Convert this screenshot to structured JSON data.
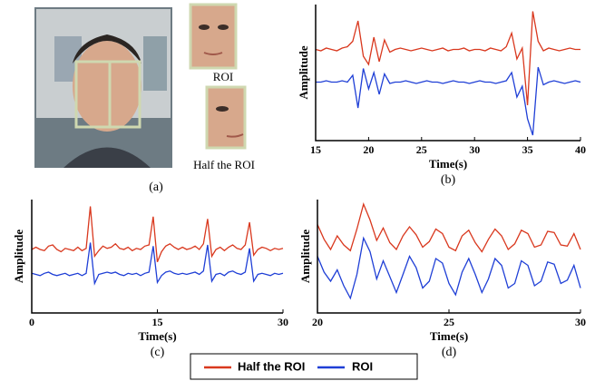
{
  "panel_a": {
    "roi_label": "ROI",
    "half_label": "Half the ROI",
    "caption": "(a)"
  },
  "chart_data": [
    {
      "type": "line",
      "caption": "(b)",
      "xlabel": "Time(s)",
      "ylabel": "Amplitude",
      "xlim": [
        15,
        40
      ],
      "xticks": [
        15,
        20,
        25,
        30,
        35,
        40
      ],
      "ylim": [
        0,
        10
      ],
      "x": [
        15,
        15.5,
        16,
        16.5,
        17,
        17.5,
        18,
        18.5,
        19,
        19.5,
        20,
        20.5,
        21,
        21.5,
        22,
        22.5,
        23,
        23.5,
        24,
        24.5,
        25,
        25.5,
        26,
        26.5,
        27,
        27.5,
        28,
        28.5,
        29,
        29.5,
        30,
        30.5,
        31,
        31.5,
        32,
        32.5,
        33,
        33.5,
        34,
        34.5,
        35,
        35.5,
        36,
        36.5,
        37,
        37.5,
        38,
        38.5,
        39,
        39.5,
        40
      ],
      "series": [
        {
          "name": "Half the ROI",
          "color": "#d9381e",
          "values": [
            6.7,
            6.6,
            6.8,
            6.7,
            6.6,
            6.8,
            6.9,
            7.3,
            8.8,
            6.2,
            5.6,
            7.6,
            5.8,
            7.4,
            6.5,
            6.7,
            6.8,
            6.7,
            6.6,
            6.7,
            6.8,
            6.7,
            6.6,
            6.7,
            6.8,
            6.6,
            6.7,
            6.7,
            6.8,
            6.6,
            6.7,
            6.7,
            6.6,
            6.8,
            6.7,
            6.6,
            6.9,
            7.9,
            6.0,
            6.8,
            2.6,
            9.5,
            7.3,
            6.6,
            6.8,
            6.7,
            6.6,
            6.7,
            6.8,
            6.7,
            6.7
          ]
        },
        {
          "name": "ROI",
          "color": "#1f3fd6",
          "values": [
            4.3,
            4.3,
            4.4,
            4.3,
            4.3,
            4.4,
            4.3,
            4.8,
            2.4,
            5.3,
            3.8,
            5.0,
            3.4,
            4.9,
            4.2,
            4.3,
            4.3,
            4.4,
            4.3,
            4.2,
            4.3,
            4.4,
            4.3,
            4.3,
            4.2,
            4.3,
            4.4,
            4.3,
            4.3,
            4.2,
            4.3,
            4.4,
            4.3,
            4.3,
            4.2,
            4.3,
            4.4,
            5.0,
            3.2,
            4.0,
            1.6,
            0.4,
            5.4,
            4.1,
            4.3,
            4.4,
            4.3,
            4.2,
            4.3,
            4.4,
            4.3
          ]
        }
      ]
    },
    {
      "type": "line",
      "caption": "(c)",
      "xlabel": "Time(s)",
      "ylabel": "Amplitude",
      "xlim": [
        0,
        30
      ],
      "xticks": [
        0,
        15,
        30
      ],
      "ylim": [
        0,
        10
      ],
      "x": [
        0,
        0.5,
        1,
        1.5,
        2,
        2.5,
        3,
        3.5,
        4,
        4.5,
        5,
        5.5,
        6,
        6.5,
        7,
        7.5,
        8,
        8.5,
        9,
        9.5,
        10,
        10.5,
        11,
        11.5,
        12,
        12.5,
        13,
        13.5,
        14,
        14.5,
        15,
        15.5,
        16,
        16.5,
        17,
        17.5,
        18,
        18.5,
        19,
        19.5,
        20,
        20.5,
        21,
        21.5,
        22,
        22.5,
        23,
        23.5,
        24,
        24.5,
        25,
        25.5,
        26,
        26.5,
        27,
        27.5,
        28,
        28.5,
        29,
        29.5,
        30
      ],
      "series": [
        {
          "name": "Half the ROI",
          "color": "#d9381e",
          "values": [
            5.6,
            5.8,
            5.6,
            5.5,
            5.9,
            6.0,
            5.6,
            5.4,
            5.7,
            5.6,
            5.5,
            5.8,
            5.5,
            5.7,
            9.4,
            5.0,
            5.5,
            5.9,
            5.7,
            5.8,
            6.1,
            5.7,
            5.6,
            5.8,
            5.5,
            5.7,
            5.6,
            5.9,
            6.0,
            8.5,
            4.5,
            5.4,
            5.9,
            6.1,
            5.8,
            5.6,
            5.8,
            5.6,
            5.7,
            5.9,
            5.6,
            6.1,
            8.3,
            5.0,
            5.6,
            5.8,
            5.5,
            5.8,
            6.0,
            5.7,
            5.6,
            6.0,
            8.0,
            5.1,
            5.6,
            5.8,
            5.7,
            5.5,
            5.7,
            5.6,
            5.7
          ]
        },
        {
          "name": "ROI",
          "color": "#1f3fd6",
          "values": [
            3.5,
            3.4,
            3.3,
            3.5,
            3.6,
            3.4,
            3.3,
            3.4,
            3.5,
            3.3,
            3.4,
            3.5,
            3.3,
            3.5,
            6.2,
            2.6,
            3.4,
            3.5,
            3.6,
            3.5,
            3.6,
            3.4,
            3.3,
            3.5,
            3.4,
            3.5,
            3.3,
            3.5,
            3.6,
            5.9,
            2.7,
            3.3,
            3.6,
            3.7,
            3.5,
            3.4,
            3.5,
            3.4,
            3.5,
            3.6,
            3.4,
            3.7,
            6.0,
            2.8,
            3.4,
            3.5,
            3.3,
            3.6,
            3.7,
            3.5,
            3.4,
            3.6,
            5.7,
            2.8,
            3.4,
            3.5,
            3.4,
            3.3,
            3.5,
            3.4,
            3.5
          ]
        }
      ]
    },
    {
      "type": "line",
      "caption": "(d)",
      "xlabel": "Time(s)",
      "ylabel": "Amplitude",
      "xlim": [
        20,
        30
      ],
      "xticks": [
        20,
        25,
        30
      ],
      "ylim": [
        0,
        10
      ],
      "x": [
        20,
        20.25,
        20.5,
        20.75,
        21,
        21.25,
        21.5,
        21.75,
        22,
        22.25,
        22.5,
        22.75,
        23,
        23.25,
        23.5,
        23.75,
        24,
        24.25,
        24.5,
        24.75,
        25,
        25.25,
        25.5,
        25.75,
        26,
        26.25,
        26.5,
        26.75,
        27,
        27.25,
        27.5,
        27.75,
        28,
        28.25,
        28.5,
        28.75,
        29,
        29.25,
        29.5,
        29.75,
        30
      ],
      "series": [
        {
          "name": "Half the ROI",
          "color": "#d9381e",
          "values": [
            7.8,
            6.5,
            5.6,
            6.8,
            6.0,
            5.5,
            7.4,
            9.6,
            8.2,
            6.4,
            7.5,
            6.2,
            5.6,
            6.8,
            7.6,
            6.9,
            5.8,
            6.3,
            7.4,
            7.0,
            5.8,
            5.5,
            6.8,
            7.3,
            6.2,
            5.4,
            6.5,
            7.4,
            6.8,
            5.6,
            6.1,
            7.3,
            7.0,
            5.8,
            6.0,
            7.2,
            7.1,
            6.0,
            5.9,
            7.0,
            5.6
          ]
        },
        {
          "name": "ROI",
          "color": "#1f3fd6",
          "values": [
            5.0,
            3.6,
            2.8,
            3.8,
            2.4,
            1.3,
            3.4,
            6.6,
            5.4,
            3.0,
            4.6,
            3.2,
            1.8,
            3.4,
            5.0,
            4.0,
            2.2,
            2.8,
            4.8,
            4.4,
            2.6,
            1.6,
            3.6,
            4.8,
            3.4,
            1.8,
            3.0,
            4.8,
            4.2,
            2.2,
            2.6,
            4.6,
            4.2,
            2.4,
            2.8,
            4.5,
            4.3,
            2.6,
            2.9,
            4.2,
            2.2
          ]
        }
      ]
    }
  ]
}
